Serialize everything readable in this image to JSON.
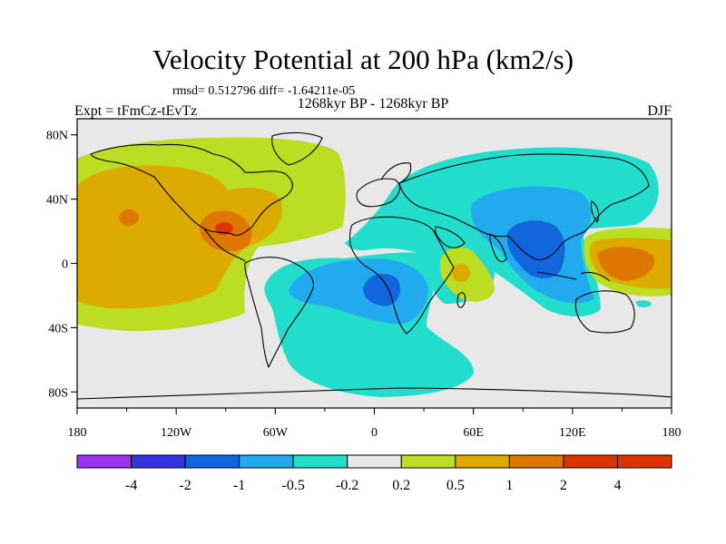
{
  "chart_data": {
    "type": "filled-contour-map",
    "title": "Velocity Potential at 200 hPa (km2/s)",
    "stats_line": "rmsd= 0.512796 diff= -1.64211e-05",
    "subtitle": "1268kyr BP - 1268kyr BP",
    "left_label": "Expt = tFmCz-tEvTz",
    "right_label": "DJF",
    "x_ticks": [
      "180",
      "120W",
      "60W",
      "0",
      "60E",
      "120E",
      "180"
    ],
    "y_ticks": [
      "80N",
      "40N",
      "0",
      "40S",
      "80S"
    ],
    "lon_range": [
      -180,
      180
    ],
    "lat_range": [
      -90,
      90
    ],
    "colorbar": {
      "colors": [
        "#9933ee",
        "#3333dd",
        "#1166dd",
        "#22aaee",
        "#22ddcc",
        "#e8e8e8",
        "#bbdd22",
        "#ddaa00",
        "#dd7700",
        "#dd3300"
      ],
      "labels": [
        "-4",
        "-2",
        "-1",
        "-0.5",
        "-0.2",
        "0.2",
        "0.5",
        "1",
        "2",
        "4"
      ]
    },
    "regions": [
      {
        "name": "pacific-positive",
        "level": "0.2 to 0.5",
        "lon": -140,
        "lat": 20
      },
      {
        "name": "pacific-max",
        "level": "0.5 to 1",
        "lon": -140,
        "lat": 30
      },
      {
        "name": "caribbean-max",
        "level": "1 to 2",
        "lon": -90,
        "lat": 25
      },
      {
        "name": "south-atlantic-negative",
        "level": "-0.5 to -0.2",
        "lon": 0,
        "lat": -45
      },
      {
        "name": "south-america-min",
        "level": "-1 to -0.5",
        "lon": -5,
        "lat": -10
      },
      {
        "name": "eurasia-negative",
        "level": "-0.5 to -0.2",
        "lon": 90,
        "lat": 50
      },
      {
        "name": "asia-min",
        "level": "-2 to -1",
        "lon": 100,
        "lat": 20
      },
      {
        "name": "east-africa-positive",
        "level": "0.2 to 1",
        "lon": 55,
        "lat": -5
      },
      {
        "name": "west-pacific-max",
        "level": "1 to 2",
        "lon": 150,
        "lat": 5
      }
    ]
  }
}
